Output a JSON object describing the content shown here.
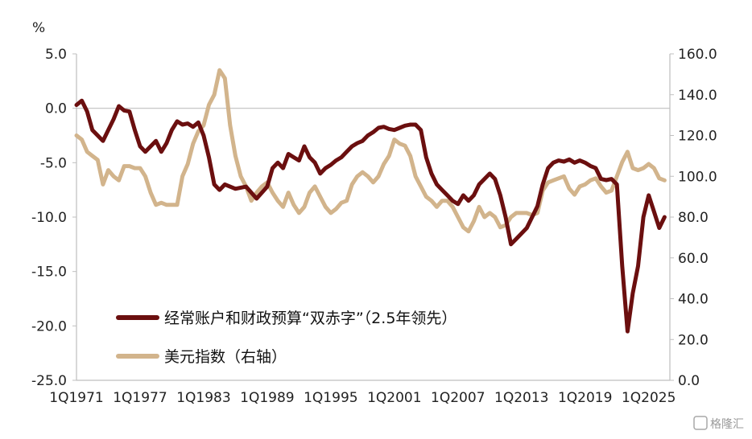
{
  "chart_data": {
    "type": "line",
    "unit_label": "%",
    "left_axis": {
      "ylim": [
        -25,
        5
      ],
      "ticks": [
        "5.0",
        "0.0",
        "-5.0",
        "-10.0",
        "-15.0",
        "-20.0",
        "-25.0"
      ]
    },
    "right_axis": {
      "ylim": [
        0,
        160
      ],
      "ticks": [
        "160.0",
        "140.0",
        "120.0",
        "100.0",
        "80.0",
        "60.0",
        "40.0",
        "20.0",
        "0.0"
      ]
    },
    "x_axis": {
      "range": [
        1971.0,
        2027.0
      ],
      "tick_labels": [
        "1Q1971",
        "1Q1977",
        "1Q1983",
        "1Q1989",
        "1Q1995",
        "1Q2001",
        "1Q2007",
        "1Q2013",
        "1Q2019",
        "1Q2025"
      ],
      "tick_years": [
        1971,
        1977,
        1983,
        1989,
        1995,
        2001,
        2007,
        2013,
        2019,
        2025
      ]
    },
    "legend_position": "bottom-left",
    "series": [
      {
        "name": "经常账户和财政预算“双赤字”（2.5年领先）",
        "axis": "left",
        "color": "#6b0f0f",
        "points": [
          [
            1971.0,
            0.3
          ],
          [
            1971.5,
            0.7
          ],
          [
            1972.0,
            -0.3
          ],
          [
            1972.5,
            -2.0
          ],
          [
            1973.0,
            -2.5
          ],
          [
            1973.5,
            -3.0
          ],
          [
            1974.0,
            -2.0
          ],
          [
            1974.5,
            -1.0
          ],
          [
            1975.0,
            0.2
          ],
          [
            1975.5,
            -0.2
          ],
          [
            1976.0,
            -0.3
          ],
          [
            1976.5,
            -2.0
          ],
          [
            1977.0,
            -3.5
          ],
          [
            1977.5,
            -4.0
          ],
          [
            1978.0,
            -3.5
          ],
          [
            1978.5,
            -3.0
          ],
          [
            1979.0,
            -4.0
          ],
          [
            1979.5,
            -3.2
          ],
          [
            1980.0,
            -2.0
          ],
          [
            1980.5,
            -1.2
          ],
          [
            1981.0,
            -1.5
          ],
          [
            1981.5,
            -1.4
          ],
          [
            1982.0,
            -1.7
          ],
          [
            1982.5,
            -1.3
          ],
          [
            1983.0,
            -2.5
          ],
          [
            1983.5,
            -4.5
          ],
          [
            1984.0,
            -7.0
          ],
          [
            1984.5,
            -7.5
          ],
          [
            1985.0,
            -7.0
          ],
          [
            1986.0,
            -7.4
          ],
          [
            1987.0,
            -7.2
          ],
          [
            1988.0,
            -8.3
          ],
          [
            1989.0,
            -7.2
          ],
          [
            1989.5,
            -5.5
          ],
          [
            1990.0,
            -5.0
          ],
          [
            1990.5,
            -5.5
          ],
          [
            1991.0,
            -4.2
          ],
          [
            1991.5,
            -4.5
          ],
          [
            1992.0,
            -4.8
          ],
          [
            1992.5,
            -3.5
          ],
          [
            1993.0,
            -4.5
          ],
          [
            1993.5,
            -5.0
          ],
          [
            1994.0,
            -6.0
          ],
          [
            1994.5,
            -5.5
          ],
          [
            1995.0,
            -5.2
          ],
          [
            1995.5,
            -4.8
          ],
          [
            1996.0,
            -4.5
          ],
          [
            1996.5,
            -4.0
          ],
          [
            1997.0,
            -3.5
          ],
          [
            1997.5,
            -3.2
          ],
          [
            1998.0,
            -3.0
          ],
          [
            1998.5,
            -2.5
          ],
          [
            1999.0,
            -2.2
          ],
          [
            1999.5,
            -1.8
          ],
          [
            2000.0,
            -1.7
          ],
          [
            2000.5,
            -1.9
          ],
          [
            2001.0,
            -2.0
          ],
          [
            2001.5,
            -1.8
          ],
          [
            2002.0,
            -1.6
          ],
          [
            2002.5,
            -1.5
          ],
          [
            2003.0,
            -1.5
          ],
          [
            2003.5,
            -2.0
          ],
          [
            2004.0,
            -4.5
          ],
          [
            2004.5,
            -6.0
          ],
          [
            2005.0,
            -7.0
          ],
          [
            2005.5,
            -7.5
          ],
          [
            2006.0,
            -8.0
          ],
          [
            2006.5,
            -8.5
          ],
          [
            2007.0,
            -8.8
          ],
          [
            2007.5,
            -8.0
          ],
          [
            2008.0,
            -8.5
          ],
          [
            2008.5,
            -8.0
          ],
          [
            2009.0,
            -7.0
          ],
          [
            2009.5,
            -6.5
          ],
          [
            2010.0,
            -6.0
          ],
          [
            2010.5,
            -6.5
          ],
          [
            2011.0,
            -8.0
          ],
          [
            2011.5,
            -10.0
          ],
          [
            2012.0,
            -12.5
          ],
          [
            2012.5,
            -12.0
          ],
          [
            2013.0,
            -11.5
          ],
          [
            2013.5,
            -11.0
          ],
          [
            2014.0,
            -10.0
          ],
          [
            2014.5,
            -9.0
          ],
          [
            2015.0,
            -7.0
          ],
          [
            2015.5,
            -5.5
          ],
          [
            2016.0,
            -5.0
          ],
          [
            2016.5,
            -4.8
          ],
          [
            2017.0,
            -4.9
          ],
          [
            2017.5,
            -4.7
          ],
          [
            2018.0,
            -5.0
          ],
          [
            2018.5,
            -4.8
          ],
          [
            2019.0,
            -5.0
          ],
          [
            2019.5,
            -5.3
          ],
          [
            2020.0,
            -5.5
          ],
          [
            2020.5,
            -6.5
          ],
          [
            2021.0,
            -6.6
          ],
          [
            2021.5,
            -6.5
          ],
          [
            2022.0,
            -7.0
          ],
          [
            2022.5,
            -14.5
          ],
          [
            2023.0,
            -20.5
          ],
          [
            2023.5,
            -17.0
          ],
          [
            2024.0,
            -14.5
          ],
          [
            2024.5,
            -10.0
          ],
          [
            2025.0,
            -8.0
          ],
          [
            2025.5,
            -9.5
          ],
          [
            2026.0,
            -11.0
          ],
          [
            2026.5,
            -10.0
          ],
          [
            2027.0,
            -9.5
          ],
          [
            2027.5,
            -10.0
          ],
          [
            2028.0,
            -11.0
          ]
        ]
      },
      {
        "name": "美元指数（右轴）",
        "axis": "right",
        "color": "#d2b48c",
        "points": [
          [
            1971.0,
            120
          ],
          [
            1971.5,
            118
          ],
          [
            1972.0,
            112
          ],
          [
            1972.5,
            110
          ],
          [
            1973.0,
            108
          ],
          [
            1973.5,
            96
          ],
          [
            1974.0,
            103
          ],
          [
            1974.5,
            100
          ],
          [
            1975.0,
            98
          ],
          [
            1975.5,
            105
          ],
          [
            1976.0,
            105
          ],
          [
            1976.5,
            104
          ],
          [
            1977.0,
            104
          ],
          [
            1977.5,
            100
          ],
          [
            1978.0,
            92
          ],
          [
            1978.5,
            86
          ],
          [
            1979.0,
            87
          ],
          [
            1979.5,
            86
          ],
          [
            1980.0,
            86
          ],
          [
            1980.5,
            86
          ],
          [
            1981.0,
            100
          ],
          [
            1981.5,
            106
          ],
          [
            1982.0,
            116
          ],
          [
            1982.5,
            122
          ],
          [
            1983.0,
            125
          ],
          [
            1983.5,
            135
          ],
          [
            1984.0,
            140
          ],
          [
            1984.5,
            152
          ],
          [
            1985.0,
            148
          ],
          [
            1985.5,
            125
          ],
          [
            1986.0,
            110
          ],
          [
            1986.5,
            100
          ],
          [
            1987.0,
            95
          ],
          [
            1987.5,
            88
          ],
          [
            1988.0,
            92
          ],
          [
            1988.5,
            95
          ],
          [
            1989.0,
            97
          ],
          [
            1989.5,
            92
          ],
          [
            1990.0,
            88
          ],
          [
            1990.5,
            85
          ],
          [
            1991.0,
            92
          ],
          [
            1991.5,
            86
          ],
          [
            1992.0,
            82
          ],
          [
            1992.5,
            85
          ],
          [
            1993.0,
            92
          ],
          [
            1993.5,
            95
          ],
          [
            1994.0,
            90
          ],
          [
            1994.5,
            85
          ],
          [
            1995.0,
            82
          ],
          [
            1995.5,
            84
          ],
          [
            1996.0,
            87
          ],
          [
            1996.5,
            88
          ],
          [
            1997.0,
            96
          ],
          [
            1997.5,
            100
          ],
          [
            1998.0,
            102
          ],
          [
            1998.5,
            100
          ],
          [
            1999.0,
            97
          ],
          [
            1999.5,
            100
          ],
          [
            2000.0,
            106
          ],
          [
            2000.5,
            110
          ],
          [
            2001.0,
            118
          ],
          [
            2001.5,
            116
          ],
          [
            2002.0,
            115
          ],
          [
            2002.5,
            110
          ],
          [
            2003.0,
            100
          ],
          [
            2003.5,
            95
          ],
          [
            2004.0,
            90
          ],
          [
            2004.5,
            88
          ],
          [
            2005.0,
            85
          ],
          [
            2005.5,
            88
          ],
          [
            2006.0,
            88
          ],
          [
            2006.5,
            85
          ],
          [
            2007.0,
            80
          ],
          [
            2007.5,
            75
          ],
          [
            2008.0,
            73
          ],
          [
            2008.5,
            78
          ],
          [
            2009.0,
            85
          ],
          [
            2009.5,
            80
          ],
          [
            2010.0,
            82
          ],
          [
            2010.5,
            80
          ],
          [
            2011.0,
            75
          ],
          [
            2011.5,
            76
          ],
          [
            2012.0,
            80
          ],
          [
            2012.5,
            82
          ],
          [
            2013.0,
            82
          ],
          [
            2013.5,
            82
          ],
          [
            2014.0,
            81
          ],
          [
            2014.5,
            82
          ],
          [
            2015.0,
            93
          ],
          [
            2015.5,
            97
          ],
          [
            2016.0,
            98
          ],
          [
            2016.5,
            99
          ],
          [
            2017.0,
            100
          ],
          [
            2017.5,
            94
          ],
          [
            2018.0,
            91
          ],
          [
            2018.5,
            95
          ],
          [
            2019.0,
            96
          ],
          [
            2019.5,
            98
          ],
          [
            2020.0,
            99
          ],
          [
            2020.5,
            95
          ],
          [
            2021.0,
            92
          ],
          [
            2021.5,
            93
          ],
          [
            2022.0,
            100
          ],
          [
            2022.5,
            107
          ],
          [
            2023.0,
            112
          ],
          [
            2023.5,
            104
          ],
          [
            2024.0,
            103
          ],
          [
            2024.5,
            104
          ],
          [
            2025.0,
            106
          ],
          [
            2025.5,
            104
          ],
          [
            2026.0,
            99
          ],
          [
            2026.5,
            98
          ],
          [
            2027.0,
            100
          ]
        ]
      }
    ],
    "watermark": "格隆汇"
  }
}
